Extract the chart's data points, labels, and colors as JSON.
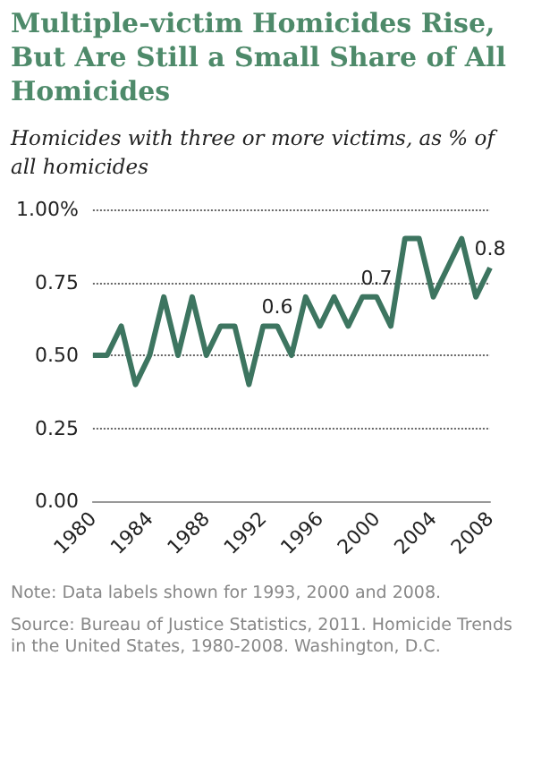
{
  "chart_data": {
    "type": "line",
    "title": "Multiple-victim Homicides Rise, But Are Still a Small Share of All Homicides",
    "subtitle": "Homicides with three or more victims, as % of all homicides",
    "x": [
      1980,
      1981,
      1982,
      1983,
      1984,
      1985,
      1986,
      1987,
      1988,
      1989,
      1990,
      1991,
      1992,
      1993,
      1994,
      1995,
      1996,
      1997,
      1998,
      1999,
      2000,
      2001,
      2002,
      2003,
      2004,
      2005,
      2006,
      2007,
      2008
    ],
    "series": [
      {
        "color": "#3d7560",
        "values": [
          0.5,
          0.5,
          0.6,
          0.4,
          0.5,
          0.7,
          0.5,
          0.7,
          0.5,
          0.6,
          0.6,
          0.4,
          0.6,
          0.6,
          0.5,
          0.7,
          0.6,
          0.7,
          0.6,
          0.7,
          0.7,
          0.6,
          0.9,
          0.9,
          0.7,
          0.8,
          0.9,
          0.7,
          0.8
        ],
        "value_labels": [
          null,
          null,
          null,
          null,
          null,
          null,
          null,
          null,
          null,
          null,
          null,
          null,
          null,
          "0.6",
          null,
          null,
          null,
          null,
          null,
          null,
          "0.7",
          null,
          null,
          null,
          null,
          null,
          null,
          null,
          "0.8"
        ]
      }
    ],
    "xlim": [
      1980,
      2008
    ],
    "xticks": [
      1980,
      1984,
      1988,
      1992,
      1996,
      2000,
      2004,
      2008
    ],
    "ylim": [
      0,
      1
    ],
    "yticks": [
      {
        "value": 0,
        "label": "0.00"
      },
      {
        "value": 0.25,
        "label": "0.25"
      },
      {
        "value": 0.5,
        "label": "0.50"
      },
      {
        "value": 0.75,
        "label": "0.75"
      },
      {
        "value": 1,
        "label": "1.00%"
      }
    ],
    "grid": "y",
    "line_style": "solid",
    "annotations": [
      "Note: Data labels shown for 1993, 2000 and 2008.",
      "Source: Bureau of Justice Statistics, 2011. Homicide Trends in the United States, 1980-2008. Washington, D.C."
    ]
  }
}
